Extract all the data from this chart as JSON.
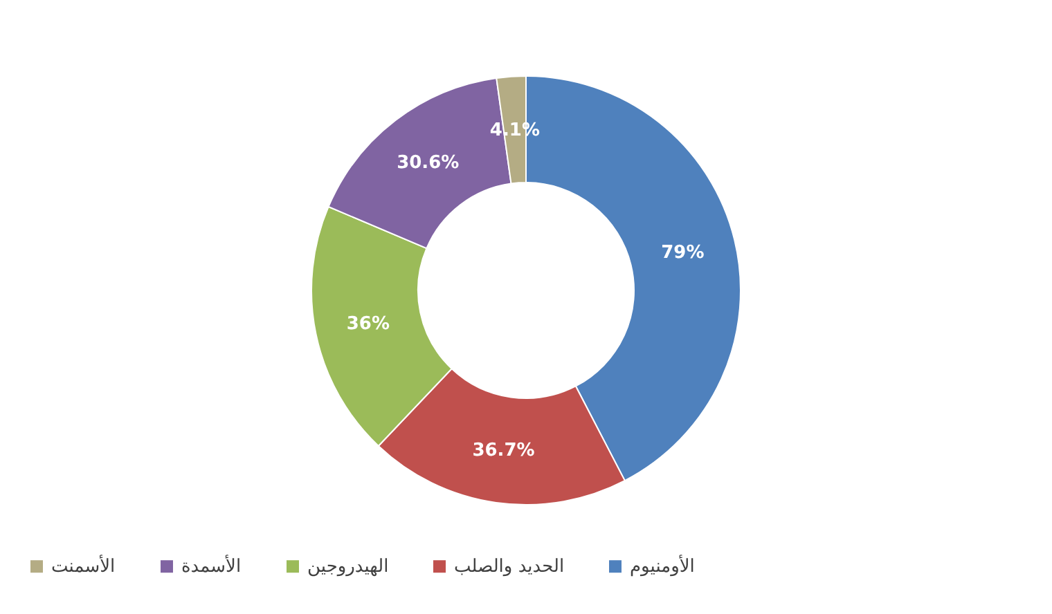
{
  "chart_data": {
    "type": "donut",
    "categories": [
      "الأومنيوم",
      "الحديد والصلب",
      "الهيدروجين",
      "الأسمدة",
      "الأسمنت"
    ],
    "values": [
      79,
      36.7,
      36,
      30.6,
      4.1
    ],
    "colors": [
      "#4f81bd",
      "#c0504d",
      "#9bbb59",
      "#8064a2",
      "#b4ac84"
    ],
    "value_labels": [
      "79%",
      "36.7%",
      "36%",
      "30.6%",
      "4.1%"
    ],
    "legend": "bottom"
  }
}
